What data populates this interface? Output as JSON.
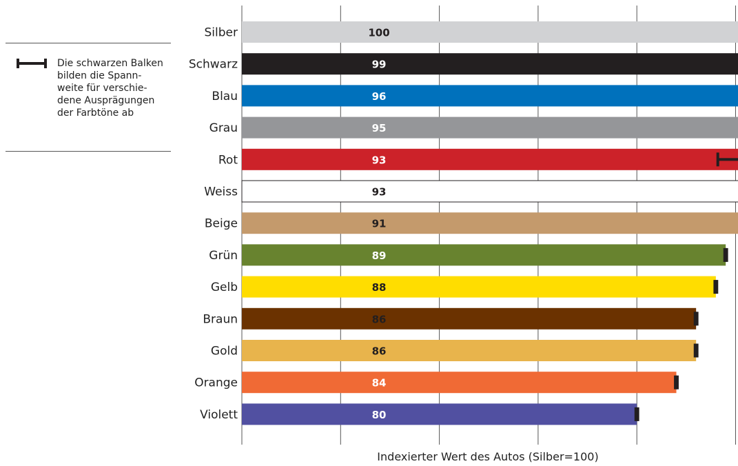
{
  "chart_data": {
    "type": "bar",
    "orientation": "horizontal",
    "categories": [
      "Silber",
      "Schwarz",
      "Blau",
      "Grau",
      "Rot",
      "Weiss",
      "Beige",
      "Grün",
      "Gelb",
      "Braun",
      "Gold",
      "Orange",
      "Violett"
    ],
    "values": [
      100,
      99,
      96,
      95,
      93,
      93,
      91,
      89,
      88,
      86,
      86,
      84,
      80
    ],
    "value_labels": [
      "100",
      "99",
      "96",
      "95",
      "93",
      "93",
      "91",
      "89",
      "88",
      "86",
      "86",
      "84",
      "80"
    ],
    "range_low": [
      100,
      98.9,
      91.8,
      94.5,
      88.2,
      92.9,
      91,
      88.9,
      87.9,
      85.9,
      85.9,
      83.9,
      79.9
    ],
    "range_high": [
      100,
      99.1,
      96,
      95.3,
      93.1,
      93.1,
      91,
      89.1,
      88.1,
      86.1,
      86.1,
      84.1,
      80.1
    ],
    "colors": [
      "#d1d2d4",
      "#231f20",
      "#0071bc",
      "#959699",
      "#cc2229",
      "#ffffff",
      "#c49a6c",
      "#68832f",
      "#ffdd00",
      "#6b3200",
      "#e8b44c",
      "#f06a35",
      "#5150a1"
    ],
    "xlabel": "Indexierter Wert des Autos (Silber=100)",
    "xlim": [
      40,
      101
    ],
    "x_gridlines": [
      40,
      50,
      60,
      70,
      80,
      90,
      100
    ],
    "grid": true,
    "legend": {
      "lines": [
        "Die schwarzen Balken",
        "bilden die Spann-",
        "weite für verschie-",
        "dene Ausprägungen",
        "der Farbtöne ab"
      ],
      "placement": "left"
    }
  }
}
